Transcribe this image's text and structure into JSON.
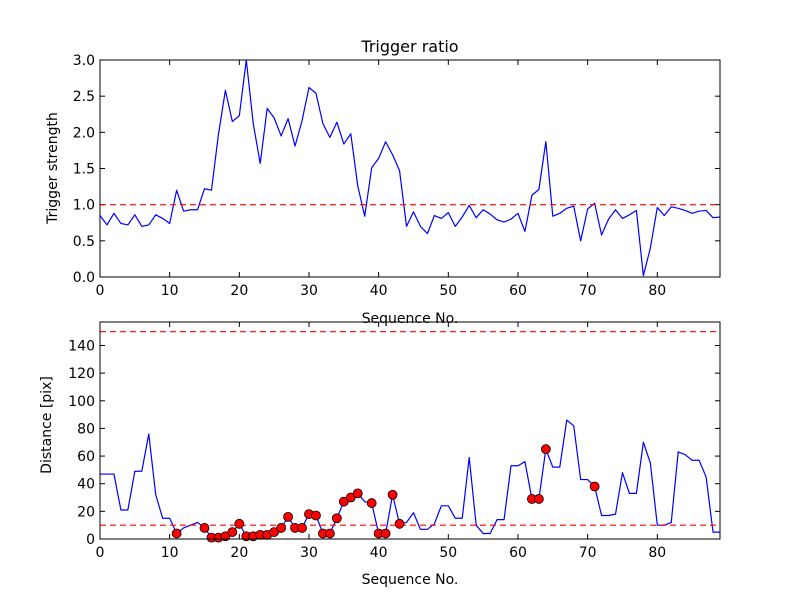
{
  "chart_data": [
    {
      "type": "line",
      "title": "Trigger ratio",
      "xlabel": "Sequence No.",
      "ylabel": "Trigger strength",
      "xlim": [
        0,
        89
      ],
      "ylim": [
        0,
        3.0
      ],
      "xticks": [
        0,
        10,
        20,
        30,
        40,
        50,
        60,
        70,
        80
      ],
      "yticks": [
        0.0,
        0.5,
        1.0,
        1.5,
        2.0,
        2.5,
        3.0
      ],
      "ytick_labels": [
        "0.0",
        "0.5",
        "1.0",
        "1.5",
        "2.0",
        "2.5",
        "3.0"
      ],
      "grid": false,
      "series": [
        {
          "color": "#0000ff",
          "x": [
            0,
            1,
            2,
            3,
            4,
            5,
            6,
            7,
            8,
            9,
            10,
            11,
            12,
            13,
            14,
            15,
            16,
            17,
            18,
            19,
            20,
            21,
            22,
            23,
            24,
            25,
            26,
            27,
            28,
            29,
            30,
            31,
            32,
            33,
            34,
            35,
            36,
            37,
            38,
            39,
            40,
            41,
            42,
            43,
            44,
            45,
            46,
            47,
            48,
            49,
            50,
            51,
            52,
            53,
            54,
            55,
            56,
            57,
            58,
            59,
            60,
            61,
            62,
            63,
            64,
            65,
            66,
            67,
            68,
            69,
            70,
            71,
            72,
            73,
            74,
            75,
            76,
            77,
            78,
            79,
            80,
            81,
            82,
            83,
            84,
            85,
            86,
            87,
            88,
            89
          ],
          "y": [
            0.85,
            0.72,
            0.88,
            0.74,
            0.72,
            0.86,
            0.7,
            0.72,
            0.86,
            0.81,
            0.74,
            1.2,
            0.91,
            0.93,
            0.93,
            1.22,
            1.2,
            1.97,
            2.58,
            2.15,
            2.23,
            3.0,
            2.12,
            1.57,
            2.33,
            2.2,
            1.95,
            2.19,
            1.81,
            2.16,
            2.62,
            2.54,
            2.12,
            1.93,
            2.14,
            1.84,
            1.98,
            1.26,
            0.84,
            1.51,
            1.64,
            1.87,
            1.69,
            1.47,
            0.7,
            0.9,
            0.7,
            0.6,
            0.85,
            0.81,
            0.89,
            0.7,
            0.83,
            0.99,
            0.82,
            0.93,
            0.87,
            0.79,
            0.76,
            0.8,
            0.88,
            0.63,
            1.13,
            1.21,
            1.87,
            0.84,
            0.88,
            0.95,
            0.98,
            0.5,
            0.94,
            1.02,
            0.58,
            0.8,
            0.93,
            0.81,
            0.86,
            0.92,
            0.02,
            0.4,
            0.96,
            0.85,
            0.97,
            0.95,
            0.92,
            0.88,
            0.91,
            0.92,
            0.82,
            0.83
          ]
        },
        {
          "color": "#ff0000",
          "style": "dashed",
          "y_const": 1.0
        }
      ]
    },
    {
      "type": "line",
      "xlabel": "Sequence No.",
      "ylabel": "Distance [pix]",
      "xlim": [
        0,
        89
      ],
      "ylim": [
        0,
        157
      ],
      "xticks": [
        0,
        10,
        20,
        30,
        40,
        50,
        60,
        70,
        80
      ],
      "yticks": [
        0,
        20,
        40,
        60,
        80,
        100,
        120,
        140
      ],
      "grid": false,
      "series": [
        {
          "color": "#0000ff",
          "x": [
            0,
            1,
            2,
            3,
            4,
            5,
            6,
            7,
            8,
            9,
            10,
            11,
            12,
            13,
            14,
            15,
            16,
            17,
            18,
            19,
            20,
            21,
            22,
            23,
            24,
            25,
            26,
            27,
            28,
            29,
            30,
            31,
            32,
            33,
            34,
            35,
            36,
            37,
            38,
            39,
            40,
            41,
            42,
            43,
            44,
            45,
            46,
            47,
            48,
            49,
            50,
            51,
            52,
            53,
            54,
            55,
            56,
            57,
            58,
            59,
            60,
            61,
            62,
            63,
            64,
            65,
            66,
            67,
            68,
            69,
            70,
            71,
            72,
            73,
            74,
            75,
            76,
            77,
            78,
            79,
            80,
            81,
            82,
            83,
            84,
            85,
            86,
            87,
            88,
            89
          ],
          "y": [
            47,
            47,
            47,
            21,
            21,
            49,
            49,
            76,
            32,
            15,
            15,
            4,
            8,
            10,
            12,
            8,
            1,
            1,
            2,
            5,
            11,
            2,
            2,
            3,
            3,
            5,
            8,
            16,
            8,
            8,
            18,
            17,
            4,
            4,
            15,
            27,
            30,
            33,
            27,
            26,
            4,
            4,
            32,
            11,
            12,
            19,
            7,
            7,
            11,
            24,
            24,
            15,
            15,
            59,
            10,
            4,
            4,
            14,
            14,
            53,
            53,
            56,
            29,
            29,
            65,
            52,
            52,
            86,
            82,
            43,
            43,
            38,
            17,
            17,
            18,
            48,
            33,
            33,
            70,
            55,
            10,
            10,
            12,
            63,
            61,
            57,
            57,
            45,
            5,
            5
          ]
        },
        {
          "color": "#ff0000",
          "marker": "circle",
          "x": [
            11,
            15,
            16,
            17,
            18,
            19,
            20,
            21,
            22,
            23,
            24,
            25,
            26,
            27,
            28,
            29,
            30,
            31,
            32,
            33,
            34,
            35,
            36,
            37,
            39,
            40,
            41,
            42,
            43,
            62,
            63,
            64,
            71
          ],
          "y": [
            4,
            8,
            1,
            1,
            2,
            5,
            11,
            2,
            2,
            3,
            3,
            5,
            8,
            16,
            8,
            8,
            18,
            17,
            4,
            4,
            15,
            27,
            30,
            33,
            26,
            4,
            4,
            32,
            11,
            29,
            29,
            65,
            38
          ]
        },
        {
          "color": "#ff0000",
          "style": "dashed",
          "y_const": 150
        },
        {
          "color": "#ff0000",
          "style": "dashed",
          "y_const": 10
        }
      ]
    }
  ]
}
